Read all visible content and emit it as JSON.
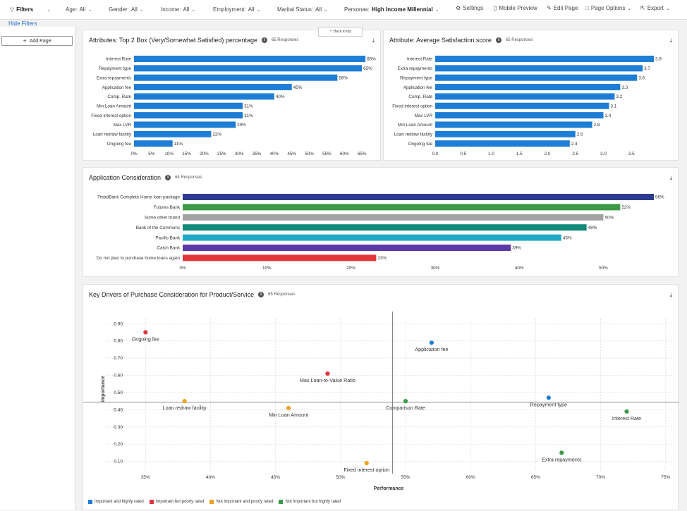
{
  "topbar": {
    "filters_label": "Filters",
    "age_label": "Age:",
    "age_value": "All",
    "gender_label": "Gender:",
    "gender_value": "All",
    "income_label": "Income:",
    "income_value": "All",
    "employment_label": "Employment:",
    "employment_value": "All",
    "marital_label": "Marital Status:",
    "marital_value": "All",
    "personas_label": "Personas:",
    "personas_value": "High Income Millennial",
    "settings": "Settings",
    "mobile_preview": "Mobile Preview",
    "edit_page": "Edit Page",
    "page_options": "Page Options",
    "export": "Export"
  },
  "hide_filters": "Hide Filters",
  "add_page": "Add Page",
  "back_to_top": "Back to top",
  "colors": {
    "blue": "#1e7ed6",
    "red": "#e0363c",
    "orange": "#f1a21e",
    "green": "#3a9a45"
  },
  "chart_data": [
    {
      "type": "bar",
      "orientation": "horizontal",
      "title": "Attributes: Top 2 Box (Very/Somewhat Satisfied) percentage",
      "responses": "65 Responses",
      "categories": [
        "Interest Rate",
        "Repayment type",
        "Extra repayments",
        "Application fee",
        "Comp. Rate",
        "Min Loan Amount",
        "Fixed interest option",
        "Max LVR",
        "Loan redraw facility",
        "Ongoing fee"
      ],
      "values": [
        66,
        65,
        58,
        45,
        40,
        31,
        31,
        29,
        22,
        11
      ],
      "labels": [
        "66%",
        "65%",
        "58%",
        "45%",
        "40%",
        "31%",
        "31%",
        "29%",
        "22%",
        "11%"
      ],
      "xticks": [
        "0%",
        "5%",
        "10%",
        "15%",
        "20%",
        "25%",
        "30%",
        "35%",
        "40%",
        "45%",
        "50%",
        "55%",
        "60%",
        "65%"
      ],
      "xlim": [
        0,
        70
      ],
      "color": "#1e7ed6"
    },
    {
      "type": "bar",
      "orientation": "horizontal",
      "title": "Attribute: Average Satisfaction score",
      "responses": "65 Responses",
      "categories": [
        "Interest Rate",
        "Extra repayments",
        "Repayment type",
        "Application fee",
        "Comp. Rate",
        "Fixed interest option",
        "Max LVR",
        "Min Loan Amount",
        "Loan redraw facility",
        "Ongoing fee"
      ],
      "values": [
        3.9,
        3.7,
        3.6,
        3.3,
        3.2,
        3.1,
        3.0,
        2.8,
        2.5,
        2.4
      ],
      "labels": [
        "3.9",
        "3.7",
        "3.6",
        "3.3",
        "3.2",
        "3.1",
        "3.0",
        "2.8",
        "2.5",
        "2.4"
      ],
      "xticks": [
        "0.0",
        "0.5",
        "1.0",
        "1.5",
        "2.0",
        "2.5",
        "3.0",
        "3.5"
      ],
      "xlim": [
        0,
        4.0
      ],
      "color": "#1e7ed6"
    },
    {
      "type": "bar",
      "orientation": "horizontal",
      "title": "Application Consideration",
      "responses": "64 Responses",
      "categories": [
        "TreadBank Complete Home loan package",
        "Futures Bank",
        "Some other brand",
        "Bank of the Commons",
        "Pacific Bank",
        "Catch Bank",
        "Do not plan to purchase home loans again"
      ],
      "values": [
        56,
        52,
        50,
        48,
        45,
        39,
        23
      ],
      "labels": [
        "56%",
        "52%",
        "50%",
        "48%",
        "45%",
        "39%",
        "23%"
      ],
      "colors": [
        "#2d3a92",
        "#3a9a45",
        "#a3a3a3",
        "#13897a",
        "#20a8c4",
        "#5b3aa6",
        "#e0363c"
      ],
      "xticks": [
        "0%",
        "10%",
        "20%",
        "30%",
        "40%",
        "50%"
      ],
      "xlim": [
        0,
        56.5
      ]
    },
    {
      "type": "scatter",
      "title": "Key Drivers of Purchase Consideration for Product/Service",
      "responses": "65 Responses",
      "xlabel": "Performance",
      "ylabel": "Importance",
      "xlim": [
        0.32,
        0.755
      ],
      "ylim": [
        0.045,
        0.93
      ],
      "xticks": [
        "35%",
        "40%",
        "45%",
        "50%",
        "55%",
        "60%",
        "65%",
        "70%",
        "75%"
      ],
      "xtick_values": [
        0.35,
        0.4,
        0.45,
        0.5,
        0.55,
        0.6,
        0.65,
        0.7,
        0.75
      ],
      "yticks": [
        "0.10",
        "0.20",
        "0.30",
        "0.40",
        "0.50",
        "0.60",
        "0.70",
        "0.80",
        "0.90"
      ],
      "ytick_values": [
        0.1,
        0.2,
        0.3,
        0.4,
        0.5,
        0.6,
        0.7,
        0.8,
        0.9
      ],
      "x_ref": 0.54,
      "y_ref": 0.445,
      "points": [
        {
          "label": "Ongoing fee",
          "x": 0.35,
          "y": 0.85,
          "category": "red"
        },
        {
          "label": "Application fee",
          "x": 0.57,
          "y": 0.79,
          "category": "blue"
        },
        {
          "label": "Max Loan-to-Value Ratio",
          "x": 0.49,
          "y": 0.61,
          "category": "red"
        },
        {
          "label": "Loan redraw facility",
          "x": 0.38,
          "y": 0.45,
          "category": "orange"
        },
        {
          "label": "Min Loan Amount",
          "x": 0.46,
          "y": 0.41,
          "category": "orange"
        },
        {
          "label": "Comparison Rate",
          "x": 0.55,
          "y": 0.45,
          "category": "green"
        },
        {
          "label": "Repayment type",
          "x": 0.66,
          "y": 0.47,
          "category": "blue"
        },
        {
          "label": "Interest Rate",
          "x": 0.72,
          "y": 0.39,
          "category": "green"
        },
        {
          "label": "Extra repayments",
          "x": 0.67,
          "y": 0.15,
          "category": "green"
        },
        {
          "label": "Fixed interest option",
          "x": 0.52,
          "y": 0.09,
          "category": "orange"
        }
      ],
      "legend": [
        {
          "label": "Important and highly rated",
          "category": "blue"
        },
        {
          "label": "Important but poorly rated",
          "category": "red"
        },
        {
          "label": "Not important and poorly rated",
          "category": "orange"
        },
        {
          "label": "Not important but highly rated",
          "category": "green"
        }
      ]
    }
  ]
}
